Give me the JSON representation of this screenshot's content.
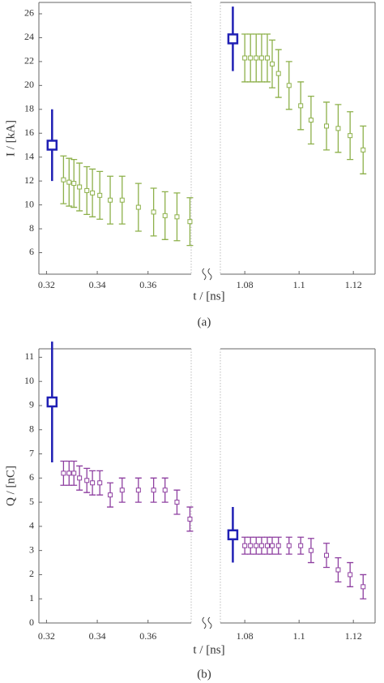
{
  "chart_data": [
    {
      "type": "scatter",
      "ylabel": "I / [kA]",
      "xlabel": "t / [ns]",
      "caption": "(a)",
      "ylim": [
        4.2,
        26.95
      ],
      "yticks": [
        6,
        8,
        10,
        12,
        14,
        16,
        18,
        20,
        22,
        24,
        26
      ],
      "x_segments": [
        {
          "xlim": [
            0.317,
            0.377
          ],
          "xticks": [
            0.32,
            0.34,
            0.36
          ]
        },
        {
          "xlim": [
            1.071,
            1.128
          ],
          "xticks": [
            1.08,
            1.1,
            1.12
          ]
        }
      ],
      "series": [
        {
          "color": "#1f1fb4",
          "marker": "large",
          "x": [
            0.3222,
            1.0756
          ],
          "values": [
            15,
            23.9
          ],
          "errors": [
            3,
            2.7
          ]
        },
        {
          "color": "#8db04a",
          "marker": "small",
          "x": [
            0.3267,
            0.3289,
            0.3308,
            0.333,
            0.3359,
            0.3381,
            0.341,
            0.3451,
            0.3498,
            0.3562,
            0.3622,
            0.3667,
            0.3714,
            0.3765,
            1.08,
            1.0821,
            1.0842,
            1.0862,
            1.0883,
            1.0901,
            1.0924,
            1.0963,
            1.1006,
            1.1044,
            1.1101,
            1.1144,
            1.1188,
            1.1236
          ],
          "values": [
            12.1,
            11.9,
            11.8,
            11.5,
            11.2,
            11.0,
            10.8,
            10.4,
            10.4,
            9.8,
            9.4,
            9.1,
            9.0,
            8.6,
            22.3,
            22.3,
            22.3,
            22.3,
            22.3,
            21.8,
            21.0,
            20.0,
            18.3,
            17.1,
            16.6,
            16.4,
            15.8,
            14.6
          ],
          "errors": [
            2,
            2,
            2,
            2,
            2,
            2,
            2,
            2,
            2,
            2,
            2,
            2,
            2,
            2,
            2,
            2,
            2,
            2,
            2,
            2,
            2,
            2,
            2,
            2,
            2,
            2,
            2,
            2
          ]
        }
      ]
    },
    {
      "type": "scatter",
      "ylabel": "Q / [nC]",
      "xlabel": "t / [ns]",
      "caption": "(b)",
      "ylim": [
        0,
        11.35
      ],
      "yticks": [
        0,
        1,
        2,
        3,
        4,
        5,
        6,
        7,
        8,
        9,
        10,
        11
      ],
      "x_segments": [
        {
          "xlim": [
            0.317,
            0.377
          ],
          "xticks": [
            0.32,
            0.34,
            0.36
          ]
        },
        {
          "xlim": [
            1.071,
            1.128
          ],
          "xticks": [
            1.08,
            1.1,
            1.12
          ]
        }
      ],
      "series": [
        {
          "color": "#1f1fb4",
          "marker": "large",
          "x": [
            0.3222,
            1.0756
          ],
          "values": [
            9.15,
            3.65
          ],
          "errors": [
            2.5,
            1.15
          ]
        },
        {
          "color": "#8e3fa0",
          "marker": "small",
          "x": [
            0.3267,
            0.3289,
            0.3308,
            0.333,
            0.3359,
            0.3381,
            0.341,
            0.3451,
            0.3498,
            0.3562,
            0.3622,
            0.3667,
            0.3714,
            0.3765,
            1.08,
            1.0821,
            1.0842,
            1.0862,
            1.0883,
            1.0901,
            1.0924,
            1.0963,
            1.1006,
            1.1044,
            1.1101,
            1.1144,
            1.1188,
            1.1236
          ],
          "values": [
            6.2,
            6.2,
            6.2,
            6.0,
            5.9,
            5.8,
            5.8,
            5.3,
            5.5,
            5.5,
            5.5,
            5.5,
            5.0,
            4.3,
            3.2,
            3.2,
            3.2,
            3.2,
            3.2,
            3.2,
            3.2,
            3.2,
            3.2,
            3.0,
            2.8,
            2.2,
            2.0,
            1.5
          ],
          "errors": [
            0.5,
            0.5,
            0.5,
            0.5,
            0.5,
            0.5,
            0.5,
            0.5,
            0.5,
            0.5,
            0.5,
            0.5,
            0.5,
            0.5,
            0.35,
            0.35,
            0.35,
            0.35,
            0.35,
            0.35,
            0.35,
            0.35,
            0.35,
            0.5,
            0.5,
            0.5,
            0.5,
            0.5
          ]
        }
      ]
    }
  ]
}
